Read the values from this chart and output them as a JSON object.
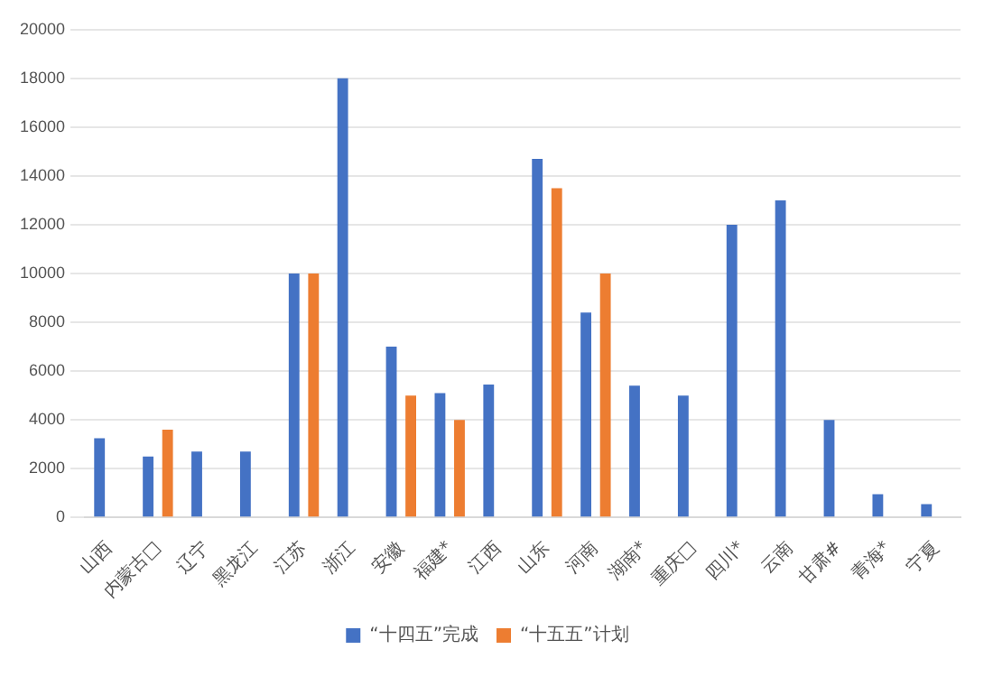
{
  "chart_data": {
    "type": "bar",
    "categories": [
      "山西",
      "内蒙古□",
      "辽宁",
      "黑龙江",
      "江苏",
      "浙江",
      "安徽",
      "福建*",
      "江西",
      "山东",
      "河南",
      "湖南*",
      "重庆□",
      "四川*",
      "云南",
      "甘肃#",
      "青海*",
      "宁夏"
    ],
    "series": [
      {
        "name": "“十四五”完成",
        "color": "#4472c4",
        "values": [
          3250,
          2500,
          2700,
          2700,
          10000,
          18000,
          7000,
          5100,
          5450,
          14700,
          8400,
          5400,
          5000,
          12000,
          13000,
          4000,
          950,
          550
        ]
      },
      {
        "name": "“十五五”计划",
        "color": "#ed7d31",
        "values": [
          null,
          3600,
          null,
          null,
          10000,
          null,
          5000,
          4000,
          null,
          13500,
          10000,
          null,
          null,
          null,
          null,
          null,
          null,
          null
        ]
      }
    ],
    "ylim": [
      0,
      20000
    ],
    "yticks": [
      0,
      2000,
      4000,
      6000,
      8000,
      10000,
      12000,
      14000,
      16000,
      18000,
      20000
    ],
    "grid": "y",
    "legend": "bottom"
  }
}
